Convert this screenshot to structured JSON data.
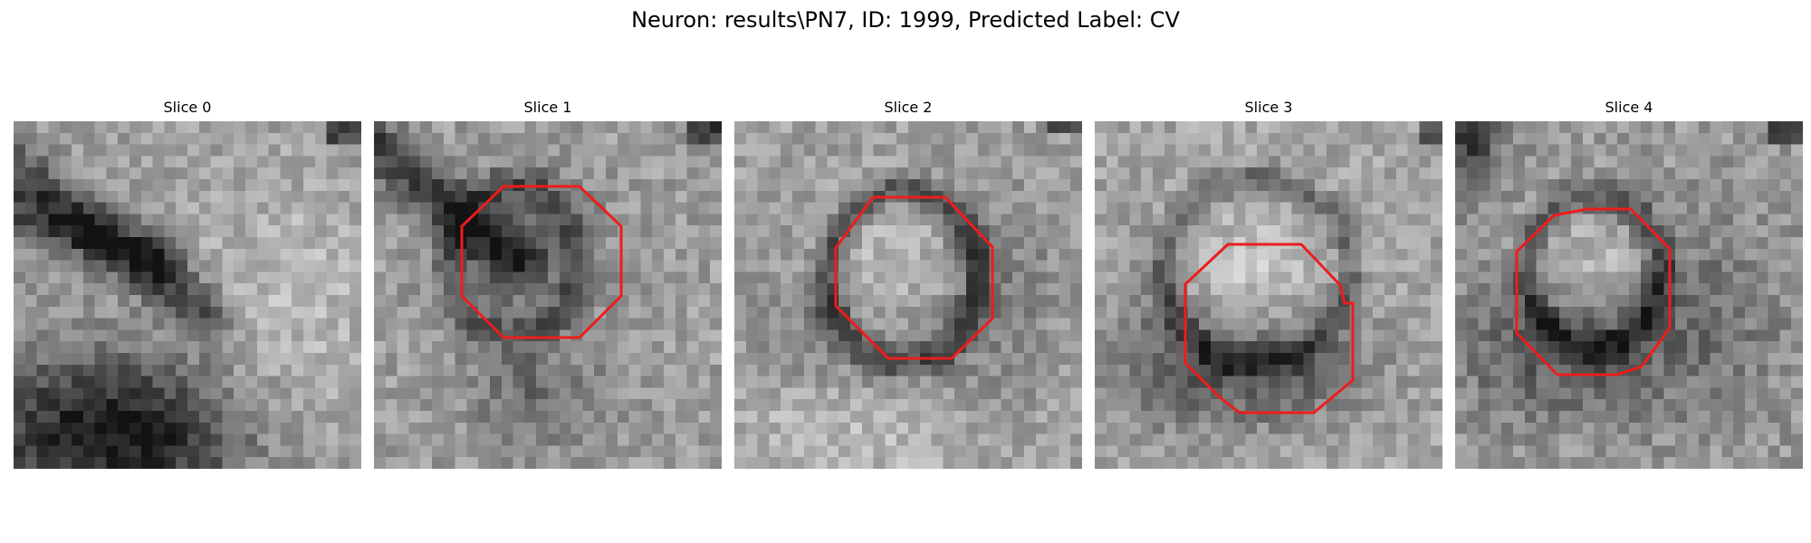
{
  "title": "Neuron: results\\PN7, ID: 1999, Predicted Label: CV",
  "colors": {
    "contour": "#ee1c1c",
    "dark": "#1b1b1b",
    "light": "#f2f2f2"
  },
  "image_grid": "30x30 grayscale pixel patch",
  "panels": [
    {
      "title": "Slice 0",
      "has_contour": false
    },
    {
      "title": "Slice 1",
      "has_contour": true
    },
    {
      "title": "Slice 2",
      "has_contour": true
    },
    {
      "title": "Slice 3",
      "has_contour": true
    },
    {
      "title": "Slice 4",
      "has_contour": true
    }
  ]
}
